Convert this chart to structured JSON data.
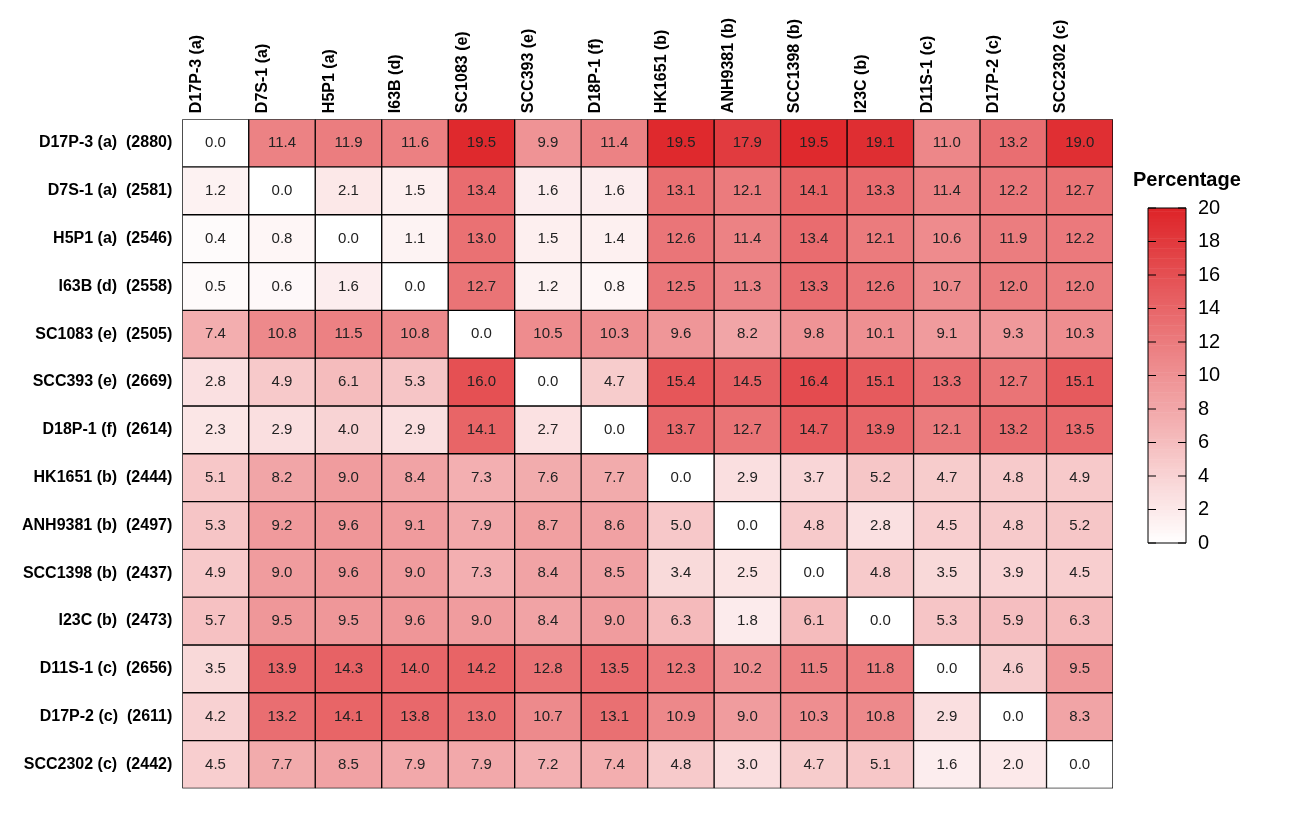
{
  "chart_data": {
    "type": "heatmap",
    "clabel": "Percentage",
    "clim": [
      0,
      20
    ],
    "cticks": [
      0,
      2,
      4,
      6,
      8,
      10,
      12,
      14,
      16,
      18,
      20
    ],
    "data_labels": true,
    "cell_labels": [
      [
        "0.0",
        "11.4",
        "11.9",
        "11.6",
        "19.5",
        "9.9",
        "11.4",
        "19.5",
        "17.9",
        "19.5",
        "19.1",
        "11.0",
        "13.2",
        "19.0"
      ],
      [
        "1.2",
        "0.0",
        "2.1",
        "1.5",
        "13.4",
        "1.6",
        "1.6",
        "13.1",
        "12.1",
        "14.1",
        "13.3",
        "11.4",
        "12.2",
        "12.7"
      ],
      [
        "0.4",
        "0.8",
        "0.0",
        "1.1",
        "13.0",
        "1.5",
        "1.4",
        "12.6",
        "11.4",
        "13.4",
        "12.1",
        "10.6",
        "11.9",
        "12.2"
      ],
      [
        "0.5",
        "0.6",
        "1.6",
        "0.0",
        "12.7",
        "1.2",
        "0.8",
        "12.5",
        "11.3",
        "13.3",
        "12.6",
        "10.7",
        "12.0",
        "12.0"
      ],
      [
        "7.4",
        "10.8",
        "11.5",
        "10.8",
        "0.0",
        "10.5",
        "10.3",
        "9.6",
        "8.2",
        "9.8",
        "10.1",
        "9.1",
        "9.3",
        "10.3"
      ],
      [
        "2.8",
        "4.9",
        "6.1",
        "5.3",
        "16.0",
        "0.0",
        "4.7",
        "15.4",
        "14.5",
        "16.4",
        "15.1",
        "13.3",
        "12.7",
        "15.1"
      ],
      [
        "2.3",
        "2.9",
        "4.0",
        "2.9",
        "14.1",
        "2.7",
        "0.0",
        "13.7",
        "12.7",
        "14.7",
        "13.9",
        "12.1",
        "13.2",
        "13.5"
      ],
      [
        "5.1",
        "8.2",
        "9.0",
        "8.4",
        "7.3",
        "7.6",
        "7.7",
        "0.0",
        "2.9",
        "3.7",
        "5.2",
        "4.7",
        "4.8",
        "4.9"
      ],
      [
        "5.3",
        "9.2",
        "9.6",
        "9.1",
        "7.9",
        "8.7",
        "8.6",
        "5.0",
        "0.0",
        "4.8",
        "2.8",
        "4.5",
        "4.8",
        "5.2"
      ],
      [
        "4.9",
        "9.0",
        "9.6",
        "9.0",
        "7.3",
        "8.4",
        "8.5",
        "3.4",
        "2.5",
        "0.0",
        "4.8",
        "3.5",
        "3.9",
        "4.5"
      ],
      [
        "5.7",
        "9.5",
        "9.5",
        "9.6",
        "9.0",
        "8.4",
        "9.0",
        "6.3",
        "1.8",
        "6.1",
        "0.0",
        "5.3",
        "5.9",
        "6.3"
      ],
      [
        "3.5",
        "13.9",
        "14.3",
        "14.0",
        "14.2",
        "12.8",
        "13.5",
        "12.3",
        "10.2",
        "11.5",
        "11.8",
        "0.0",
        "4.6",
        "9.5"
      ],
      [
        "4.2",
        "13.2",
        "14.1",
        "13.8",
        "13.0",
        "10.7",
        "13.1",
        "10.9",
        "9.0",
        "10.3",
        "10.8",
        "2.9",
        "0.0",
        "8.3"
      ],
      [
        "4.5",
        "7.7",
        "8.5",
        "7.9",
        "7.9",
        "7.2",
        "7.4",
        "4.8",
        "3.0",
        "4.7",
        "5.1",
        "1.6",
        "2.0",
        "0.0"
      ]
    ],
    "categories": [
      "D17P-3 (a)",
      "D7S-1 (a)",
      "H5P1 (a)",
      "I63B (d)",
      "SC1083 (e)",
      "SCC393 (e)",
      "D18P-1 (f)",
      "HK1651 (b)",
      "ANH9381 (b)",
      "SCC1398 (b)",
      "I23C (b)",
      "D11S-1 (c)",
      "D17P-2 (c)",
      "SCC2302 (c)"
    ],
    "y_categories": [
      "D17P-3 (a)  (2880)",
      "D7S-1 (a)  (2581)",
      "H5P1 (a)  (2546)",
      "I63B (d)  (2558)",
      "SC1083 (e)  (2505)",
      "SCC393 (e)  (2669)",
      "D18P-1 (f)  (2614)",
      "HK1651 (b)  (2444)",
      "ANH9381 (b)  (2497)",
      "SCC1398 (b)  (2437)",
      "I23C (b)  (2473)",
      "D11S-1 (c)  (2656)",
      "D17P-2 (c)  (2611)",
      "SCC2302 (c)  (2442)"
    ],
    "cells": [
      [
        0.0,
        11.4,
        11.9,
        11.6,
        19.5,
        9.9,
        11.4,
        19.5,
        17.9,
        19.5,
        19.1,
        11.0,
        13.2,
        19.0
      ],
      [
        1.2,
        0.0,
        2.1,
        1.5,
        13.4,
        1.6,
        1.6,
        13.1,
        12.1,
        14.1,
        13.3,
        11.4,
        12.2,
        12.7
      ],
      [
        0.4,
        0.8,
        0.0,
        1.1,
        13.0,
        1.5,
        1.4,
        12.6,
        11.4,
        13.4,
        12.1,
        10.6,
        11.9,
        12.2
      ],
      [
        0.5,
        0.6,
        1.6,
        0.0,
        12.7,
        1.2,
        0.8,
        12.5,
        11.3,
        13.3,
        12.6,
        10.7,
        12.0,
        12.0
      ],
      [
        7.4,
        10.8,
        11.5,
        10.8,
        0.0,
        10.5,
        10.3,
        9.6,
        8.2,
        9.8,
        10.1,
        9.1,
        9.3,
        10.3
      ],
      [
        2.8,
        4.9,
        6.1,
        5.3,
        16.0,
        0.0,
        4.7,
        15.4,
        14.5,
        16.4,
        15.1,
        13.3,
        12.7,
        15.1
      ],
      [
        2.3,
        2.9,
        4.0,
        2.9,
        14.1,
        2.7,
        0.0,
        13.7,
        12.7,
        14.7,
        13.9,
        12.1,
        13.2,
        13.5
      ],
      [
        5.1,
        8.2,
        9.0,
        8.4,
        7.3,
        7.6,
        7.7,
        0.0,
        2.9,
        3.7,
        5.2,
        4.7,
        4.8,
        4.9
      ],
      [
        5.3,
        9.2,
        9.6,
        9.1,
        7.9,
        8.7,
        8.6,
        5.0,
        0.0,
        4.8,
        2.8,
        4.5,
        4.8,
        5.2
      ],
      [
        4.9,
        9.0,
        9.6,
        9.0,
        7.3,
        8.4,
        8.5,
        3.4,
        2.5,
        0.0,
        4.8,
        3.5,
        3.9,
        4.5
      ],
      [
        5.7,
        9.5,
        9.5,
        9.6,
        9.0,
        8.4,
        9.0,
        6.3,
        1.8,
        6.1,
        0.0,
        5.3,
        5.9,
        6.3
      ],
      [
        3.5,
        13.9,
        14.3,
        14.0,
        14.2,
        12.8,
        13.5,
        12.3,
        10.2,
        11.5,
        11.8,
        0.0,
        4.6,
        9.5
      ],
      [
        4.2,
        13.2,
        14.1,
        13.8,
        13.0,
        10.7,
        13.1,
        10.9,
        9.0,
        10.3,
        10.8,
        2.9,
        0.0,
        8.3
      ],
      [
        4.5,
        7.7,
        8.5,
        7.9,
        7.9,
        7.2,
        7.4,
        4.8,
        3.0,
        4.7,
        5.1,
        1.6,
        2.0,
        0.0
      ]
    ]
  }
}
